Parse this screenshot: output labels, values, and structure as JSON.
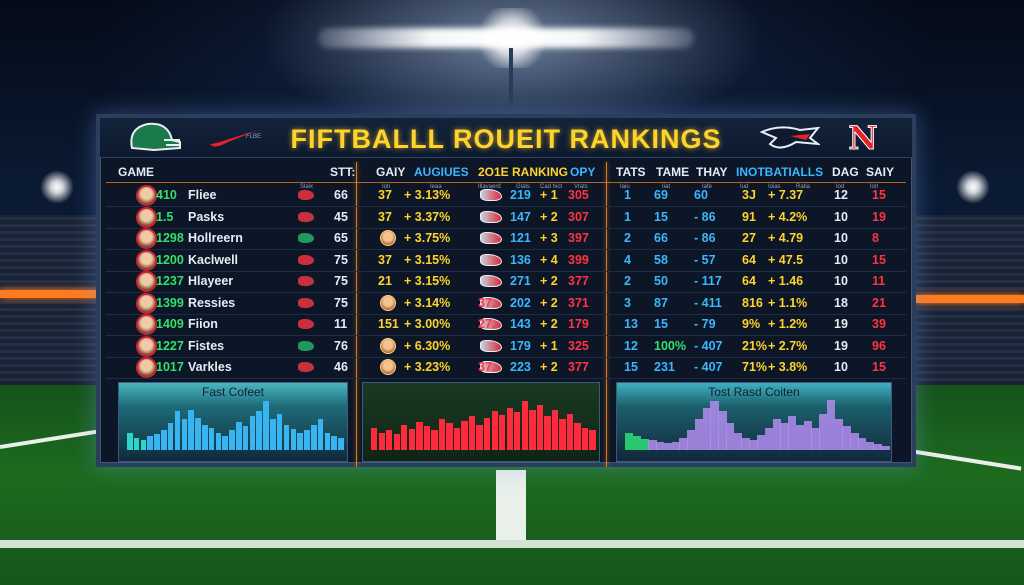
{
  "board": {
    "title": "FIFTBALLL ROUEIT RANKINGS",
    "logos": [
      "helmet-logo",
      "swoosh-logo",
      "hawk-logo",
      "n-logo"
    ],
    "n_logo_text": "N",
    "swoosh_text": "FLBE"
  },
  "headers": {
    "left": [
      "GAME",
      "STT:"
    ],
    "middle": [
      "GAIY",
      "AUGIUES",
      "2O1E RANKING",
      "OPY"
    ],
    "right": [
      "TATS",
      "TAME",
      "THAY",
      "INOTBATIALLS",
      "DAG",
      "SAIY"
    ]
  },
  "subheaders": {
    "left": [
      "Slaix"
    ],
    "middle": [
      "Ioti",
      "Ieaa",
      "Illavaerd",
      "Glats",
      "Cad hict",
      "Vrats"
    ],
    "right": [
      "Iaiu",
      "Iiat",
      "Iafe",
      "Iud",
      "Ioias",
      "Ratia",
      "Iod",
      "Iorl"
    ]
  },
  "rows": [
    {
      "rank": "410",
      "name": "Fliee",
      "stt": "66",
      "gaiy": "37",
      "aug": "+ 3.13%",
      "r1": "219",
      "r2": "+ 1",
      "opy": "305",
      "tats": "1",
      "tame": "69",
      "thay": "60",
      "in1": "3J",
      "in2": "+ 7.37",
      "dag": "12",
      "saiy": "15",
      "team_color": "#c8303c"
    },
    {
      "rank": "1.5",
      "name": "Pasks",
      "stt": "45",
      "gaiy": "37",
      "aug": "+ 3.37%",
      "r1": "147",
      "r2": "+ 2",
      "opy": "307",
      "tats": "1",
      "tame": "15",
      "thay": "- 86",
      "in1": "91",
      "in2": "+ 4.2%",
      "dag": "10",
      "saiy": "19",
      "team_color": "#c8303c"
    },
    {
      "rank": "1298",
      "name": "Hollreern",
      "stt": "65",
      "gaiy": "",
      "aug": "+ 3.75%",
      "r1": "121",
      "r2": "+ 3",
      "opy": "397",
      "tats": "2",
      "tame": "66",
      "thay": "- 86",
      "in1": "27",
      "in2": "+ 4.79",
      "dag": "10",
      "saiy": "8",
      "team_color": "#1f9a5a"
    },
    {
      "rank": "1200",
      "name": "Kaclwell",
      "stt": "75",
      "gaiy": "37",
      "aug": "+ 3.15%",
      "r1": "136",
      "r2": "+ 4",
      "opy": "399",
      "tats": "4",
      "tame": "58",
      "thay": "- 57",
      "in1": "64",
      "in2": "+ 47.5",
      "dag": "10",
      "saiy": "15",
      "team_color": "#c8303c"
    },
    {
      "rank": "1237",
      "name": "Hlayeer",
      "stt": "75",
      "gaiy": "21",
      "aug": "+ 3.15%",
      "r1": "271",
      "r2": "+ 2",
      "opy": "377",
      "tats": "2",
      "tame": "50",
      "thay": "- 117",
      "in1": "64",
      "in2": "+ 1.46",
      "dag": "10",
      "saiy": "11",
      "team_color": "#c8303c"
    },
    {
      "rank": "1399",
      "name": "Ressies",
      "stt": "75",
      "gaiy": "",
      "aug": "+ 3.14%",
      "r1": "37.",
      "r1b": "202",
      "r2": "+ 2",
      "opy": "371",
      "tats": "3",
      "tame": "87",
      "thay": "- 411",
      "in1": "816",
      "in2": "+ 1.1%",
      "dag": "18",
      "saiy": "21",
      "team_color": "#c8303c"
    },
    {
      "rank": "1409",
      "name": "Fiion",
      "stt": "11",
      "gaiy": "151",
      "aug": "+ 3.00%",
      "r1": "27.",
      "r1b": "143",
      "r2": "+ 2",
      "opy": "179",
      "tats": "13",
      "tame": "15",
      "thay": "- 79",
      "in1": "9%",
      "in2": "+ 1.2%",
      "dag": "19",
      "saiy": "39",
      "team_color": "#c8303c"
    },
    {
      "rank": "1227",
      "name": "Fistes",
      "stt": "76",
      "gaiy": "",
      "aug": "+ 6.30%",
      "r1": "179",
      "r2": "+ 1",
      "opy": "325",
      "tats": "12",
      "tame": "100%",
      "thay": "- 407",
      "in1": "21%",
      "in2": "+ 2.7%",
      "dag": "19",
      "saiy": "96",
      "team_color": "#1f9a5a"
    },
    {
      "rank": "1017",
      "name": "Varkles",
      "stt": "46",
      "gaiy": "",
      "aug": "+ 3.23%",
      "r1": "37.",
      "r1b": "223",
      "r2": "+ 2",
      "opy": "377",
      "tats": "15",
      "tame": "231",
      "thay": "- 407",
      "in1": "71%",
      "in2": "+ 3.8%",
      "dag": "10",
      "saiy": "15",
      "team_color": "#c8303c"
    }
  ],
  "colors": {
    "yellow": "#ffd42a",
    "cyan": "#3ab7ff",
    "red": "#ff3344",
    "green": "#32e06a",
    "white": "#e6ecf5"
  },
  "chart_data": [
    {
      "type": "bar",
      "title": "Fast Cofeet",
      "values": [
        30,
        22,
        18,
        25,
        28,
        35,
        48,
        70,
        55,
        72,
        58,
        45,
        40,
        30,
        25,
        35,
        50,
        42,
        60,
        70,
        88,
        55,
        65,
        45,
        38,
        30,
        35,
        45,
        55,
        30,
        25,
        22
      ],
      "color": "#38b4f0",
      "second_color": "#2bd6c8",
      "ylim": [
        0,
        100
      ]
    },
    {
      "type": "bar",
      "title": "",
      "values": [
        40,
        30,
        35,
        28,
        45,
        38,
        50,
        42,
        35,
        55,
        48,
        40,
        52,
        60,
        45,
        58,
        70,
        62,
        75,
        68,
        88,
        72,
        80,
        60,
        72,
        55,
        64,
        48,
        40,
        35
      ],
      "color": "#ff2b3d",
      "ylim": [
        0,
        100
      ]
    },
    {
      "type": "area",
      "title": "Tost Rasd Coiten",
      "values": [
        30,
        25,
        20,
        18,
        15,
        12,
        14,
        22,
        35,
        55,
        75,
        88,
        70,
        48,
        30,
        22,
        18,
        26,
        40,
        55,
        48,
        60,
        45,
        52,
        40,
        65,
        90,
        55,
        42,
        30,
        22,
        15,
        10,
        8
      ],
      "color": "#b28cf0",
      "second_color": "#2ee07a",
      "ylim": [
        0,
        100
      ]
    }
  ]
}
